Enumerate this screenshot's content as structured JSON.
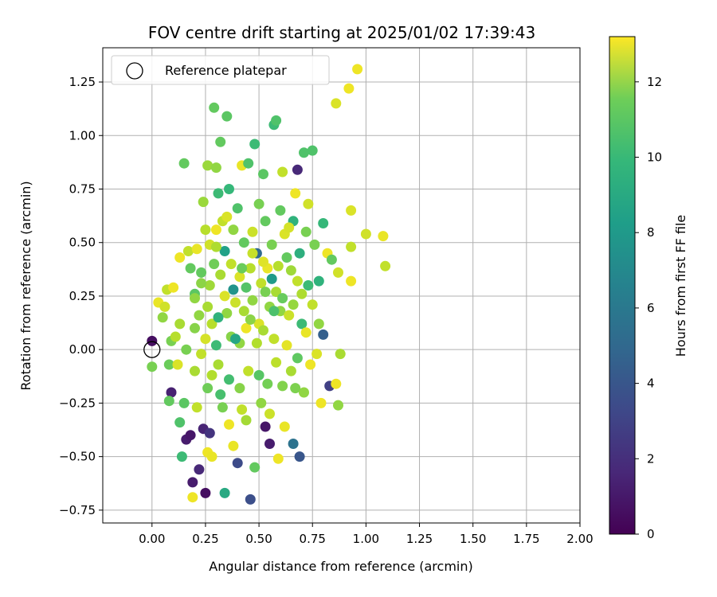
{
  "chart_data": {
    "type": "scatter",
    "title": "FOV centre drift starting at 2025/01/02 17:39:43",
    "xlabel": "Angular distance from reference (arcmin)",
    "ylabel": "Rotation from reference (arcmin)",
    "xlim": [
      -0.23,
      2.0
    ],
    "ylim": [
      -0.81,
      1.41
    ],
    "xticks": [
      0.0,
      0.25,
      0.5,
      0.75,
      1.0,
      1.25,
      1.5,
      1.75,
      2.0
    ],
    "xtick_labels": [
      "0.00",
      "0.25",
      "0.50",
      "0.75",
      "1.00",
      "1.25",
      "1.50",
      "1.75",
      "2.00"
    ],
    "yticks": [
      -0.75,
      -0.5,
      -0.25,
      0.0,
      0.25,
      0.5,
      0.75,
      1.0,
      1.25
    ],
    "ytick_labels": [
      "−0.75",
      "−0.50",
      "−0.25",
      "0.00",
      "0.25",
      "0.50",
      "0.75",
      "1.00",
      "1.25"
    ],
    "grid": true,
    "legend": {
      "position": "top-left",
      "entries": [
        "Reference platepar"
      ]
    },
    "reference_point": {
      "x": 0.0,
      "y": 0.0,
      "label": "Reference platepar"
    },
    "colorbar": {
      "label": "Hours from first FF file",
      "range": [
        0,
        13.2
      ],
      "ticks": [
        0,
        2,
        4,
        6,
        8,
        10,
        12
      ],
      "tick_labels": [
        "0",
        "2",
        "4",
        "6",
        "8",
        "10",
        "12"
      ],
      "colormap": "viridis"
    },
    "points": [
      [
        0.0,
        0.04,
        0.5
      ],
      [
        0.0,
        -0.08,
        10.5
      ],
      [
        0.03,
        0.22,
        12.8
      ],
      [
        0.06,
        0.2,
        12.3
      ],
      [
        0.05,
        0.15,
        11.0
      ],
      [
        0.07,
        0.28,
        12.0
      ],
      [
        0.08,
        -0.07,
        10.2
      ],
      [
        0.09,
        -0.2,
        1.2
      ],
      [
        0.08,
        -0.24,
        10.0
      ],
      [
        0.09,
        0.04,
        10.5
      ],
      [
        0.1,
        0.29,
        12.9
      ],
      [
        0.11,
        0.06,
        11.8
      ],
      [
        0.12,
        -0.07,
        12.5
      ],
      [
        0.13,
        0.43,
        12.9
      ],
      [
        0.13,
        0.12,
        11.5
      ],
      [
        0.13,
        -0.34,
        9.5
      ],
      [
        0.15,
        -0.25,
        9.8
      ],
      [
        0.14,
        -0.5,
        9.0
      ],
      [
        0.16,
        -0.42,
        1.0
      ],
      [
        0.15,
        0.87,
        10.0
      ],
      [
        0.16,
        0.0,
        10.5
      ],
      [
        0.17,
        0.46,
        12.0
      ],
      [
        0.18,
        0.38,
        10.0
      ],
      [
        0.18,
        -0.4,
        0.8
      ],
      [
        0.19,
        -0.62,
        1.0
      ],
      [
        0.19,
        -0.69,
        12.9
      ],
      [
        0.2,
        -0.1,
        11.5
      ],
      [
        0.2,
        0.26,
        9.8
      ],
      [
        0.2,
        0.24,
        11.0
      ],
      [
        0.21,
        0.47,
        12.8
      ],
      [
        0.21,
        -0.27,
        12.0
      ],
      [
        0.22,
        0.16,
        11.0
      ],
      [
        0.22,
        -0.56,
        1.5
      ],
      [
        0.23,
        0.36,
        10.0
      ],
      [
        0.23,
        -0.02,
        12.0
      ],
      [
        0.24,
        0.69,
        11.2
      ],
      [
        0.24,
        -0.37,
        1.3
      ],
      [
        0.25,
        0.56,
        11.8
      ],
      [
        0.25,
        -0.67,
        0.5
      ],
      [
        0.26,
        0.86,
        11.2
      ],
      [
        0.26,
        -0.48,
        12.9
      ],
      [
        0.26,
        0.2,
        11.5
      ],
      [
        0.27,
        -0.39,
        2.0
      ],
      [
        0.27,
        0.49,
        12.3
      ],
      [
        0.28,
        -0.5,
        12.8
      ],
      [
        0.28,
        0.12,
        11.8
      ],
      [
        0.29,
        1.13,
        10.0
      ],
      [
        0.3,
        0.85,
        11.0
      ],
      [
        0.3,
        0.56,
        12.9
      ],
      [
        0.3,
        0.02,
        9.0
      ],
      [
        0.31,
        0.73,
        9.0
      ],
      [
        0.31,
        -0.07,
        11.5
      ],
      [
        0.32,
        0.97,
        10.0
      ],
      [
        0.32,
        0.35,
        11.5
      ],
      [
        0.33,
        0.6,
        12.0
      ],
      [
        0.33,
        -0.27,
        10.5
      ],
      [
        0.34,
        -0.67,
        8.0
      ],
      [
        0.34,
        0.25,
        12.5
      ],
      [
        0.35,
        1.09,
        9.8
      ],
      [
        0.35,
        0.17,
        11.0
      ],
      [
        0.36,
        0.75,
        8.8
      ],
      [
        0.36,
        -0.35,
        12.9
      ],
      [
        0.37,
        0.4,
        12.0
      ],
      [
        0.37,
        0.06,
        10.8
      ],
      [
        0.38,
        0.56,
        11.0
      ],
      [
        0.38,
        -0.45,
        12.8
      ],
      [
        0.39,
        0.22,
        12.2
      ],
      [
        0.4,
        0.66,
        9.5
      ],
      [
        0.4,
        -0.53,
        3.0
      ],
      [
        0.41,
        0.34,
        12.5
      ],
      [
        0.41,
        0.03,
        11.0
      ],
      [
        0.42,
        0.86,
        12.8
      ],
      [
        0.42,
        -0.28,
        12.0
      ],
      [
        0.43,
        0.18,
        11.5
      ],
      [
        0.43,
        0.5,
        10.0
      ],
      [
        0.44,
        0.1,
        12.9
      ],
      [
        0.45,
        0.87,
        9.5
      ],
      [
        0.45,
        -0.1,
        12.0
      ],
      [
        0.46,
        0.38,
        11.8
      ],
      [
        0.46,
        -0.7,
        3.2
      ],
      [
        0.47,
        0.55,
        12.2
      ],
      [
        0.47,
        0.23,
        11.0
      ],
      [
        0.48,
        0.96,
        9.0
      ],
      [
        0.48,
        -0.55,
        10.0
      ],
      [
        0.49,
        0.45,
        4.5
      ],
      [
        0.5,
        0.68,
        10.5
      ],
      [
        0.5,
        0.12,
        12.5
      ],
      [
        0.51,
        0.31,
        12.0
      ],
      [
        0.51,
        -0.25,
        11.0
      ],
      [
        0.52,
        0.82,
        9.8
      ],
      [
        0.52,
        0.09,
        11.5
      ],
      [
        0.53,
        0.6,
        10.0
      ],
      [
        0.53,
        -0.36,
        0.8
      ],
      [
        0.54,
        0.38,
        12.8
      ],
      [
        0.55,
        0.2,
        11.0
      ],
      [
        0.55,
        -0.44,
        1.0
      ],
      [
        0.56,
        0.49,
        10.5
      ],
      [
        0.57,
        1.05,
        9.0
      ],
      [
        0.57,
        0.05,
        12.0
      ],
      [
        0.58,
        1.07,
        9.5
      ],
      [
        0.58,
        0.27,
        11.5
      ],
      [
        0.59,
        -0.51,
        12.9
      ],
      [
        0.6,
        0.65,
        10.0
      ],
      [
        0.6,
        0.18,
        11.0
      ],
      [
        0.61,
        0.83,
        12.0
      ],
      [
        0.62,
        0.54,
        12.5
      ],
      [
        0.62,
        -0.36,
        12.8
      ],
      [
        0.63,
        0.43,
        10.0
      ],
      [
        0.64,
        0.16,
        12.2
      ],
      [
        0.65,
        -0.1,
        11.5
      ],
      [
        0.66,
        0.6,
        8.5
      ],
      [
        0.66,
        -0.44,
        5.0
      ],
      [
        0.67,
        0.73,
        12.9
      ],
      [
        0.68,
        0.84,
        1.5
      ],
      [
        0.68,
        0.32,
        12.0
      ],
      [
        0.69,
        -0.5,
        3.5
      ],
      [
        0.7,
        0.12,
        9.0
      ],
      [
        0.71,
        0.92,
        9.5
      ],
      [
        0.71,
        -0.2,
        11.0
      ],
      [
        0.72,
        0.55,
        10.5
      ],
      [
        0.73,
        0.68,
        12.3
      ],
      [
        0.73,
        0.3,
        9.0
      ],
      [
        0.74,
        -0.07,
        12.9
      ],
      [
        0.75,
        0.93,
        9.5
      ],
      [
        0.75,
        0.21,
        12.0
      ],
      [
        0.76,
        0.49,
        10.5
      ],
      [
        0.77,
        -0.02,
        12.5
      ],
      [
        0.78,
        0.32,
        8.5
      ],
      [
        0.78,
        0.12,
        11.0
      ],
      [
        0.79,
        -0.25,
        12.9
      ],
      [
        0.8,
        0.59,
        8.8
      ],
      [
        0.8,
        0.07,
        4.0
      ],
      [
        0.82,
        0.45,
        12.9
      ],
      [
        0.83,
        -0.17,
        2.5
      ],
      [
        0.84,
        0.42,
        10.0
      ],
      [
        0.86,
        -0.16,
        12.9
      ],
      [
        0.86,
        1.15,
        12.5
      ],
      [
        0.87,
        0.36,
        12.3
      ],
      [
        0.87,
        -0.26,
        11.0
      ],
      [
        0.92,
        1.22,
        12.9
      ],
      [
        0.93,
        0.65,
        12.5
      ],
      [
        0.93,
        0.48,
        12.0
      ],
      [
        0.93,
        0.32,
        12.9
      ],
      [
        0.96,
        1.31,
        12.9
      ],
      [
        1.0,
        0.54,
        12.3
      ],
      [
        1.08,
        0.53,
        12.8
      ],
      [
        1.09,
        0.39,
        12.0
      ],
      [
        0.88,
        -0.02,
        11.5
      ],
      [
        0.2,
        0.1,
        10.8
      ],
      [
        0.27,
        0.3,
        11.3
      ],
      [
        0.29,
        0.4,
        10.3
      ],
      [
        0.31,
        0.15,
        8.5
      ],
      [
        0.34,
        0.46,
        7.5
      ],
      [
        0.36,
        -0.14,
        9.2
      ],
      [
        0.39,
        0.05,
        7.8
      ],
      [
        0.41,
        -0.18,
        10.8
      ],
      [
        0.44,
        0.29,
        9.6
      ],
      [
        0.46,
        0.14,
        10.9
      ],
      [
        0.49,
        0.03,
        11.7
      ],
      [
        0.52,
        0.41,
        12.6
      ],
      [
        0.54,
        -0.16,
        10.4
      ],
      [
        0.56,
        0.33,
        7.2
      ],
      [
        0.58,
        -0.06,
        11.9
      ],
      [
        0.61,
        0.24,
        10.1
      ],
      [
        0.63,
        0.02,
        12.7
      ],
      [
        0.65,
        0.37,
        11.3
      ],
      [
        0.67,
        -0.18,
        10.6
      ],
      [
        0.69,
        0.45,
        8.3
      ],
      [
        0.7,
        0.26,
        11.6
      ],
      [
        0.72,
        0.08,
        12.8
      ],
      [
        0.25,
        0.05,
        12.4
      ],
      [
        0.23,
        0.31,
        10.9
      ],
      [
        0.28,
        -0.12,
        11.7
      ],
      [
        0.32,
        -0.21,
        9.3
      ],
      [
        0.35,
        0.62,
        12.5
      ],
      [
        0.38,
        0.28,
        6.8
      ],
      [
        0.42,
        0.38,
        10.2
      ],
      [
        0.44,
        -0.33,
        11.4
      ],
      [
        0.47,
        0.45,
        12.1
      ],
      [
        0.5,
        -0.12,
        9.7
      ],
      [
        0.53,
        0.27,
        10.5
      ],
      [
        0.55,
        -0.3,
        12.2
      ],
      [
        0.57,
        0.18,
        9.4
      ],
      [
        0.59,
        0.39,
        11.8
      ],
      [
        0.61,
        -0.17,
        10.7
      ],
      [
        0.64,
        0.57,
        12.4
      ],
      [
        0.66,
        0.21,
        11.1
      ],
      [
        0.68,
        -0.04,
        9.9
      ],
      [
        0.3,
        0.48,
        11.6
      ],
      [
        0.26,
        -0.18,
        10.3
      ]
    ]
  }
}
